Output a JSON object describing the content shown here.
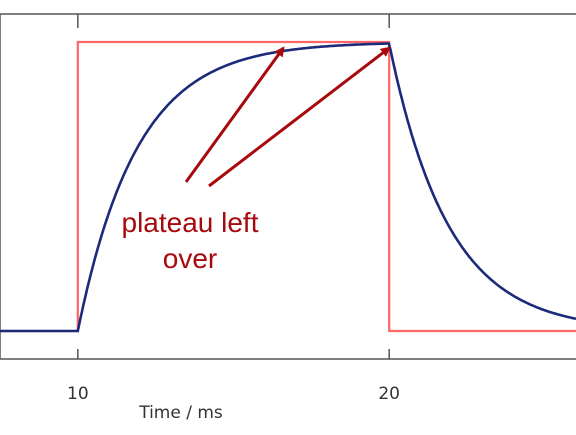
{
  "chart_data": {
    "type": "line",
    "title": "",
    "xlabel": "Time / ms",
    "ylabel": "",
    "xlim": [
      7.5,
      26.0
    ],
    "ylim": [
      -0.05,
      1.09
    ],
    "x_ticks": [
      {
        "value": 10,
        "label": "10"
      },
      {
        "value": 20,
        "label": "20"
      }
    ],
    "grid": false,
    "colors": {
      "pulse": "#ff6666",
      "response": "#1c2a7a",
      "annotation": "#a8090c",
      "axis": "#555555"
    },
    "series": [
      {
        "kind": "rectangular-pulse",
        "x": [
          7.5,
          10,
          10,
          20,
          20,
          26
        ],
        "y": [
          0,
          0,
          1,
          1,
          0,
          0
        ]
      },
      {
        "kind": "exponential-response",
        "x": [
          7.5,
          10,
          10.5,
          11,
          11.5,
          12,
          12.5,
          13,
          13.5,
          14,
          15,
          16,
          17,
          18,
          19,
          20,
          20.5,
          21,
          21.5,
          22,
          22.5,
          23,
          23.5,
          24,
          25,
          26
        ],
        "y": [
          0,
          0,
          0.4,
          0.64,
          0.78,
          0.87,
          0.92,
          0.95,
          0.97,
          0.982,
          0.993,
          0.997,
          0.999,
          1,
          1,
          1,
          0.6,
          0.36,
          0.22,
          0.13,
          0.08,
          0.05,
          0.03,
          0.018,
          0.007,
          0.003
        ]
      }
    ],
    "annotations": [
      {
        "lines": [
          "plateau left",
          "over"
        ],
        "arrows_to": [
          {
            "x": 16.6,
            "y": 1.0
          },
          {
            "x": 20.0,
            "y": 1.0
          }
        ]
      }
    ]
  }
}
